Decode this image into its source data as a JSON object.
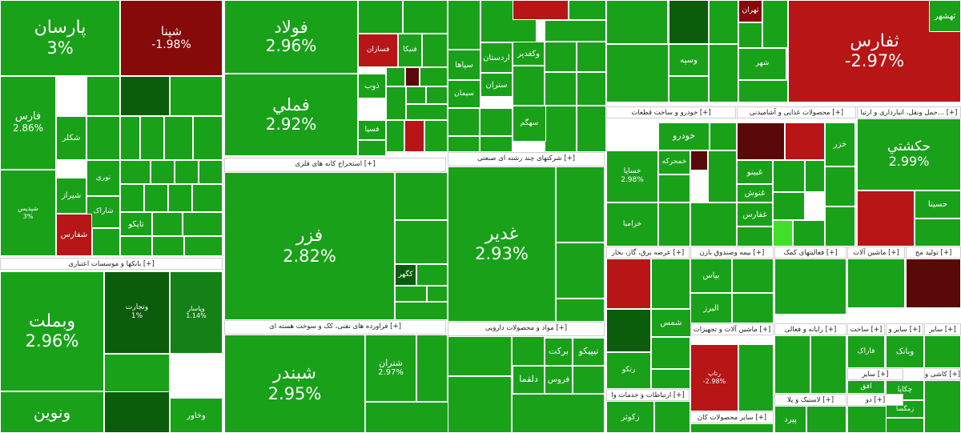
{
  "colors": {
    "positive": "#1aa11a",
    "positive_light": "#32b30f",
    "positive_dark": "#0b5c0b",
    "positive_mid": "#158015",
    "negative": "#b71516",
    "negative_dark": "#860a0a",
    "negative_deep": "#5a0909",
    "neon": "#40e02a"
  },
  "sectors": [
    {
      "label": "بانکها و موسسات اعتباری [+]"
    },
    {
      "label": "استخراج کانه های فلزی [+]"
    },
    {
      "label": "فراورده های نفتی، کک و سوخت هسته ای [+]"
    },
    {
      "label": "شرکتهای چند رشته ای صنعتی [+]"
    },
    {
      "label": "مواد و محصولات دارویی [+]"
    },
    {
      "label": "خودرو و ساخت قطعات [+]"
    },
    {
      "label": "محصولات غذایی و آشامیدنی [+]"
    },
    {
      "label": "حمل ونقل، انبارداری و ارتبا... [+]"
    },
    {
      "label": "عرضه برق، گاز، بخار [+]"
    },
    {
      "label": "بیمه وصندوق بازن [+]"
    },
    {
      "label": "فعالیتهای کمک [+]"
    },
    {
      "label": "ماشین آلات [+]"
    },
    {
      "label": "تولید مح [+]"
    },
    {
      "label": "ماشین آلات و تجهیزات [+]"
    },
    {
      "label": "رایانه و فعالی [+]"
    },
    {
      "label": "ساخت [+]"
    },
    {
      "label": "سایر و [+]"
    },
    {
      "label": "سایر [+]"
    },
    {
      "label": "سایر [+]"
    },
    {
      "label": "کاشی و [+]"
    },
    {
      "label": "لاستیک و پلا [+]"
    },
    {
      "label": "دو [+]"
    },
    {
      "label": "ارتباطات و خدمات وا [+]"
    },
    {
      "label": "سایر محصولات کان [+]"
    }
  ],
  "tiles": [
    {
      "name": "پارسان",
      "change": "3%"
    },
    {
      "name": "شپنا",
      "change": "-1.98%"
    },
    {
      "name": "فارس",
      "change": "2.86%"
    },
    {
      "name": "شکلر",
      "change": ""
    },
    {
      "name": "شپدیس",
      "change": "3%"
    },
    {
      "name": "شاراک",
      "change": ""
    },
    {
      "name": "شیراز",
      "change": ""
    },
    {
      "name": "شفارس",
      "change": ""
    },
    {
      "name": "نوری",
      "change": ""
    },
    {
      "name": "وبملت",
      "change": "2.96%"
    },
    {
      "name": "وتجارت",
      "change": "1%"
    },
    {
      "name": "وپاسار",
      "change": "1.14%"
    },
    {
      "name": "وخاور",
      "change": ""
    },
    {
      "name": "ونوين",
      "change": ""
    },
    {
      "name": "فولاد",
      "change": "2.96%"
    },
    {
      "name": "فملي",
      "change": "2.92%"
    },
    {
      "name": "فزر",
      "change": "2.82%"
    },
    {
      "name": "کگهر",
      "change": ""
    },
    {
      "name": "شبندر",
      "change": "2.95%"
    },
    {
      "name": "شتران",
      "change": "2.97%"
    },
    {
      "name": "ذوب",
      "change": ""
    },
    {
      "name": "فنيكا",
      "change": ""
    },
    {
      "name": "فسازان",
      "change": ""
    },
    {
      "name": "فسپا",
      "change": ""
    },
    {
      "name": "اردستان",
      "change": ""
    },
    {
      "name": "سپاها",
      "change": ""
    },
    {
      "name": "ستران",
      "change": ""
    },
    {
      "name": "سیمان",
      "change": ""
    },
    {
      "name": "سهگم",
      "change": ""
    },
    {
      "name": "غدیر",
      "change": "2.93%"
    },
    {
      "name": "برکت",
      "change": ""
    },
    {
      "name": "دلقما",
      "change": ""
    },
    {
      "name": "تیپیکو",
      "change": ""
    },
    {
      "name": "ثفارس",
      "change": "-2.97%"
    },
    {
      "name": "خودرو",
      "change": ""
    },
    {
      "name": "خساپا",
      "change": "2.98%"
    },
    {
      "name": "خزر",
      "change": ""
    },
    {
      "name": "حکشتي",
      "change": "2.99%"
    },
    {
      "name": "حسینا",
      "change": ""
    },
    {
      "name": "ثهشهر",
      "change": ""
    },
    {
      "name": "وسپه",
      "change": ""
    },
    {
      "name": "شمس",
      "change": ""
    },
    {
      "name": "البرز",
      "change": ""
    },
    {
      "name": "بپاس",
      "change": ""
    },
    {
      "name": "رتاپ",
      "change": "-2.98%"
    },
    {
      "name": "ثهران",
      "change": ""
    },
    {
      "name": "رتکو",
      "change": ""
    },
    {
      "name": "زکوثر",
      "change": ""
    },
    {
      "name": "شهر",
      "change": ""
    },
    {
      "name": "افق",
      "change": ""
    },
    {
      "name": "فاراک",
      "change": ""
    },
    {
      "name": "پیرد",
      "change": ""
    },
    {
      "name": "چکاپا",
      "change": ""
    },
    {
      "name": "وکغدیر",
      "change": ""
    },
    {
      "name": "غفارس",
      "change": ""
    },
    {
      "name": "غنوش",
      "change": ""
    },
    {
      "name": "غبینو",
      "change": ""
    },
    {
      "name": "خزامیا",
      "change": ""
    },
    {
      "name": "وبانک",
      "change": ""
    },
    {
      "name": "زمگسا",
      "change": ""
    },
    {
      "name": "خمحرکه",
      "change": ""
    },
    {
      "name": "تاپکو",
      "change": ""
    },
    {
      "name": "فروس",
      "change": ""
    }
  ]
}
